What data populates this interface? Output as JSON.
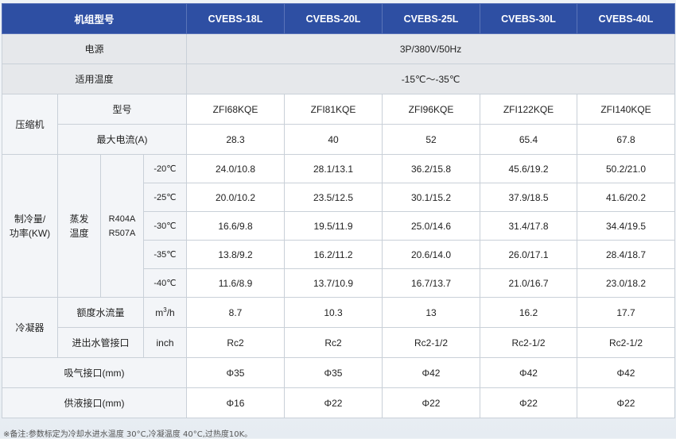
{
  "header": {
    "col0": "机组型号",
    "models": [
      "CVEBS-18L",
      "CVEBS-20L",
      "CVEBS-25L",
      "CVEBS-30L",
      "CVEBS-40L"
    ]
  },
  "power": {
    "label": "电源",
    "value": "3P/380V/50Hz"
  },
  "temp_range": {
    "label": "适用温度",
    "value": "-15℃～-35℃"
  },
  "compressor": {
    "label": "压缩机",
    "model_label": "型号",
    "models": [
      "ZFI68KQE",
      "ZFI81KQE",
      "ZFI96KQE",
      "ZFI122KQE",
      "ZFI140KQE"
    ],
    "current_label": "最大电流(A)",
    "currents": [
      "28.3",
      "40",
      "52",
      "65.4",
      "67.8"
    ]
  },
  "cooling": {
    "label_line1": "制冷量/",
    "label_line2": "功率(KW)",
    "evap_line1": "蒸发",
    "evap_line2": "温度",
    "refrigerant_line1": "R404A",
    "refrigerant_line2": "R507A",
    "rows": [
      {
        "temp": "-20℃",
        "values": [
          "24.0/10.8",
          "28.1/13.1",
          "36.2/15.8",
          "45.6/19.2",
          "50.2/21.0"
        ]
      },
      {
        "temp": "-25℃",
        "values": [
          "20.0/10.2",
          "23.5/12.5",
          "30.1/15.2",
          "37.9/18.5",
          "41.6/20.2"
        ]
      },
      {
        "temp": "-30℃",
        "values": [
          "16.6/9.8",
          "19.5/11.9",
          "25.0/14.6",
          "31.4/17.8",
          "34.4/19.5"
        ]
      },
      {
        "temp": "-35℃",
        "values": [
          "13.8/9.2",
          "16.2/11.2",
          "20.6/14.0",
          "26.0/17.1",
          "28.4/18.7"
        ]
      },
      {
        "temp": "-40℃",
        "values": [
          "11.6/8.9",
          "13.7/10.9",
          "16.7/13.7",
          "21.0/16.7",
          "23.0/18.2"
        ]
      }
    ]
  },
  "condenser": {
    "label": "冷凝器",
    "flow_label": "额度水流量",
    "flow_unit_base": "m",
    "flow_unit_sup": "3",
    "flow_unit_tail": "/h",
    "flows": [
      "8.7",
      "10.3",
      "13",
      "16.2",
      "17.7"
    ],
    "pipe_label": "进出水管接口",
    "pipe_unit": "inch",
    "pipes": [
      "Rc2",
      "Rc2",
      "Rc2-1/2",
      "Rc2-1/2",
      "Rc2-1/2"
    ]
  },
  "suction": {
    "label": "吸气接口(mm)",
    "values": [
      "Φ35",
      "Φ35",
      "Φ42",
      "Φ42",
      "Φ42"
    ]
  },
  "liquid": {
    "label": "供液接口(mm)",
    "values": [
      "Φ16",
      "Φ22",
      "Φ22",
      "Φ22",
      "Φ22"
    ]
  },
  "note": "※备注:参数标定为冷却水进水温度 30°C,冷凝温度 40°C,过热度10K。",
  "colors": {
    "header_bg": "#2e4fa3",
    "label_bg": "#e6e8eb",
    "border": "#c9d0d8"
  }
}
